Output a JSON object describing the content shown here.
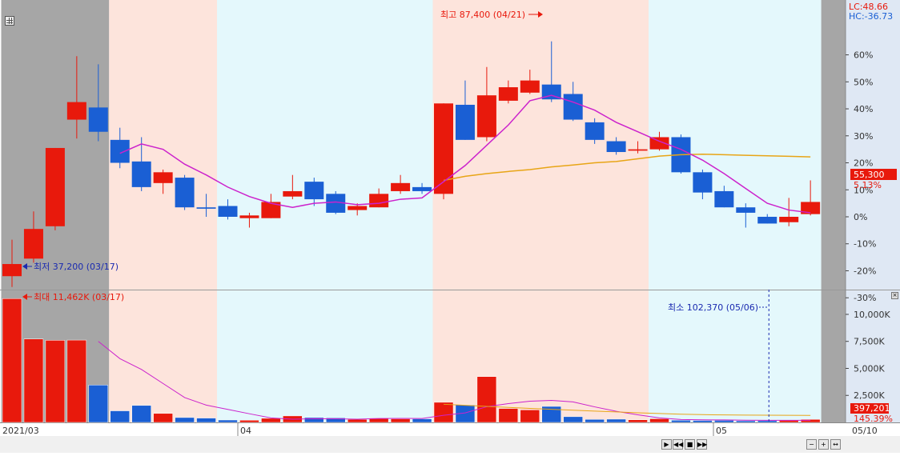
{
  "chart_data": {
    "type": "candlestick",
    "x_labels": [
      "2021/03",
      "04",
      "05",
      "05/10"
    ],
    "price_pct": [
      {
        "o": -22.0,
        "c": -17.5,
        "h": -8.5,
        "l": -26.0
      },
      {
        "o": -15.5,
        "c": -4.5,
        "h": 2.0,
        "l": -17.0
      },
      {
        "o": -3.5,
        "c": 25.5,
        "h": 25.5,
        "l": -5.0
      },
      {
        "o": 36.0,
        "c": 42.5,
        "h": 59.5,
        "l": 29.0
      },
      {
        "o": 40.5,
        "c": 31.5,
        "h": 56.5,
        "l": 28.0
      },
      {
        "o": 28.5,
        "c": 20.0,
        "h": 33.0,
        "l": 18.0
      },
      {
        "o": 20.5,
        "c": 11.0,
        "h": 29.5,
        "l": 9.5
      },
      {
        "o": 12.5,
        "c": 16.5,
        "h": 17.5,
        "l": 8.5
      },
      {
        "o": 14.5,
        "c": 3.5,
        "h": 15.5,
        "l": 2.5
      },
      {
        "o": 3.5,
        "c": 3.0,
        "h": 8.5,
        "l": 0.0
      },
      {
        "o": 4.0,
        "c": 0.0,
        "h": 6.5,
        "l": -1.0
      },
      {
        "o": -0.5,
        "c": 0.5,
        "h": 1.5,
        "l": -4.0
      },
      {
        "o": -0.5,
        "c": 5.5,
        "h": 8.5,
        "l": -0.5
      },
      {
        "o": 7.5,
        "c": 9.5,
        "h": 15.5,
        "l": 6.5
      },
      {
        "o": 13.0,
        "c": 6.5,
        "h": 14.5,
        "l": 4.0
      },
      {
        "o": 8.5,
        "c": 1.5,
        "h": 9.5,
        "l": 1.0
      },
      {
        "o": 2.5,
        "c": 4.0,
        "h": 5.0,
        "l": 0.5
      },
      {
        "o": 3.5,
        "c": 8.5,
        "h": 10.5,
        "l": 3.5
      },
      {
        "o": 9.5,
        "c": 12.5,
        "h": 15.5,
        "l": 8.5
      },
      {
        "o": 11.0,
        "c": 9.5,
        "h": 12.5,
        "l": 8.5
      },
      {
        "o": 8.5,
        "c": 42.0,
        "h": 42.0,
        "l": 6.5
      },
      {
        "o": 41.5,
        "c": 28.5,
        "h": 50.5,
        "l": 28.5
      },
      {
        "o": 29.5,
        "c": 45.0,
        "h": 55.5,
        "l": 28.0
      },
      {
        "o": 43.0,
        "c": 48.0,
        "h": 50.5,
        "l": 42.0
      },
      {
        "o": 46.0,
        "c": 50.5,
        "h": 54.5,
        "l": 45.5
      },
      {
        "o": 49.0,
        "c": 43.5,
        "h": 65.0,
        "l": 42.5
      },
      {
        "o": 45.5,
        "c": 36.0,
        "h": 50.0,
        "l": 35.5
      },
      {
        "o": 35.0,
        "c": 28.5,
        "h": 36.5,
        "l": 27.0
      },
      {
        "o": 28.0,
        "c": 24.0,
        "h": 29.5,
        "l": 23.0
      },
      {
        "o": 24.5,
        "c": 25.0,
        "h": 28.0,
        "l": 23.5
      },
      {
        "o": 25.0,
        "c": 29.5,
        "h": 31.5,
        "l": 24.5
      },
      {
        "o": 29.5,
        "c": 16.5,
        "h": 30.5,
        "l": 16.0
      },
      {
        "o": 16.5,
        "c": 9.0,
        "h": 17.5,
        "l": 6.5
      },
      {
        "o": 9.5,
        "c": 3.5,
        "h": 11.5,
        "l": 3.5
      },
      {
        "o": 3.5,
        "c": 1.5,
        "h": 5.0,
        "l": -4.0
      },
      {
        "o": 0.0,
        "c": -2.5,
        "h": 1.0,
        "l": -2.5
      },
      {
        "o": -2.0,
        "c": 0.0,
        "h": 7.0,
        "l": -3.5
      },
      {
        "o": 1.0,
        "c": 5.5,
        "h": 13.5,
        "l": 0.5
      }
    ],
    "ma_short_pct": [
      null,
      null,
      null,
      null,
      null,
      23.5,
      27.0,
      25.0,
      19.5,
      15.5,
      11.0,
      7.5,
      5.0,
      3.5,
      5.0,
      5.5,
      4.5,
      5.0,
      6.5,
      7.0,
      13.0,
      19.0,
      26.5,
      34.0,
      43.0,
      45.0,
      42.5,
      39.5,
      35.0,
      31.5,
      28.0,
      25.0,
      21.0,
      16.0,
      10.5,
      5.0,
      2.5,
      1.5
    ],
    "ma_long_pct": [
      null,
      null,
      null,
      null,
      null,
      null,
      null,
      null,
      null,
      null,
      null,
      null,
      null,
      null,
      null,
      null,
      null,
      null,
      null,
      null,
      13.5,
      15.0,
      16.0,
      16.8,
      17.5,
      18.5,
      19.2,
      20.0,
      20.5,
      21.5,
      22.5,
      23.0,
      23.2,
      23.0,
      22.8,
      22.6,
      22.4,
      22.2
    ],
    "volume_k": [
      11462,
      7720,
      7600,
      7620,
      3460,
      1070,
      1570,
      830,
      450,
      400,
      220,
      200,
      380,
      600,
      450,
      420,
      280,
      400,
      330,
      330,
      1860,
      1620,
      4240,
      1290,
      1160,
      1480,
      530,
      280,
      300,
      240,
      340,
      200,
      180,
      190,
      150,
      160,
      190,
      280
    ],
    "volume_ma_k": [
      null,
      null,
      null,
      null,
      7500,
      5900,
      4900,
      3600,
      2300,
      1600,
      1200,
      800,
      420,
      300,
      340,
      330,
      300,
      360,
      370,
      360,
      660,
      880,
      1450,
      1740,
      1960,
      2040,
      1900,
      1440,
      1030,
      700,
      420,
      270,
      240,
      230,
      200,
      190,
      190,
      190
    ],
    "volume_ma2_k": [
      null,
      null,
      null,
      null,
      null,
      null,
      null,
      null,
      null,
      null,
      null,
      null,
      null,
      null,
      null,
      null,
      null,
      null,
      null,
      null,
      1680,
      1580,
      1480,
      1390,
      1300,
      1210,
      1130,
      1050,
      970,
      890,
      820,
      760,
      720,
      690,
      680,
      670,
      660,
      650
    ],
    "up_color": "#e8190c",
    "down_color": "#1a5fd4",
    "ma_short_color": "#cc22cc",
    "ma_long_color": "#e8a516",
    "price_axis": {
      "min": -37,
      "max": 63,
      "ticks": [
        "60%",
        "50%",
        "40%",
        "30%",
        "20%",
        "10%",
        "0%",
        "-10%",
        "-20%",
        "-30%"
      ]
    },
    "volume_axis": {
      "min": 0,
      "max": 12000,
      "ticks": [
        "10,000K",
        "7,500K",
        "5,000K",
        "2,500K"
      ]
    },
    "shading": [
      {
        "from": 0,
        "to": 4,
        "color": "#a6a6a6"
      },
      {
        "from": 5,
        "to": 9,
        "color": "#fde4dc"
      },
      {
        "from": 10,
        "to": 19,
        "color": "#e4f8fc"
      },
      {
        "from": 20,
        "to": 29,
        "color": "#fde4dc"
      },
      {
        "from": 30,
        "to": 37,
        "color": "#e4f8fc"
      },
      {
        "from": 38,
        "to": 38,
        "color": "#a6a6a6"
      }
    ]
  },
  "labels": {
    "lc": "LC:48.66",
    "hc": "HC:-36.73",
    "high_ann": "최고 87,400 (04/21)",
    "low_ann": "최저 37,200 (03/17)",
    "vol_max_ann": "최대 11,462K (03/17)",
    "vol_min_ann": "최소 102,370 (05/06)",
    "price_badge": "55,300",
    "price_pct": "5.13%",
    "vol_badge": "397,201",
    "vol_pct": "145.39%"
  }
}
